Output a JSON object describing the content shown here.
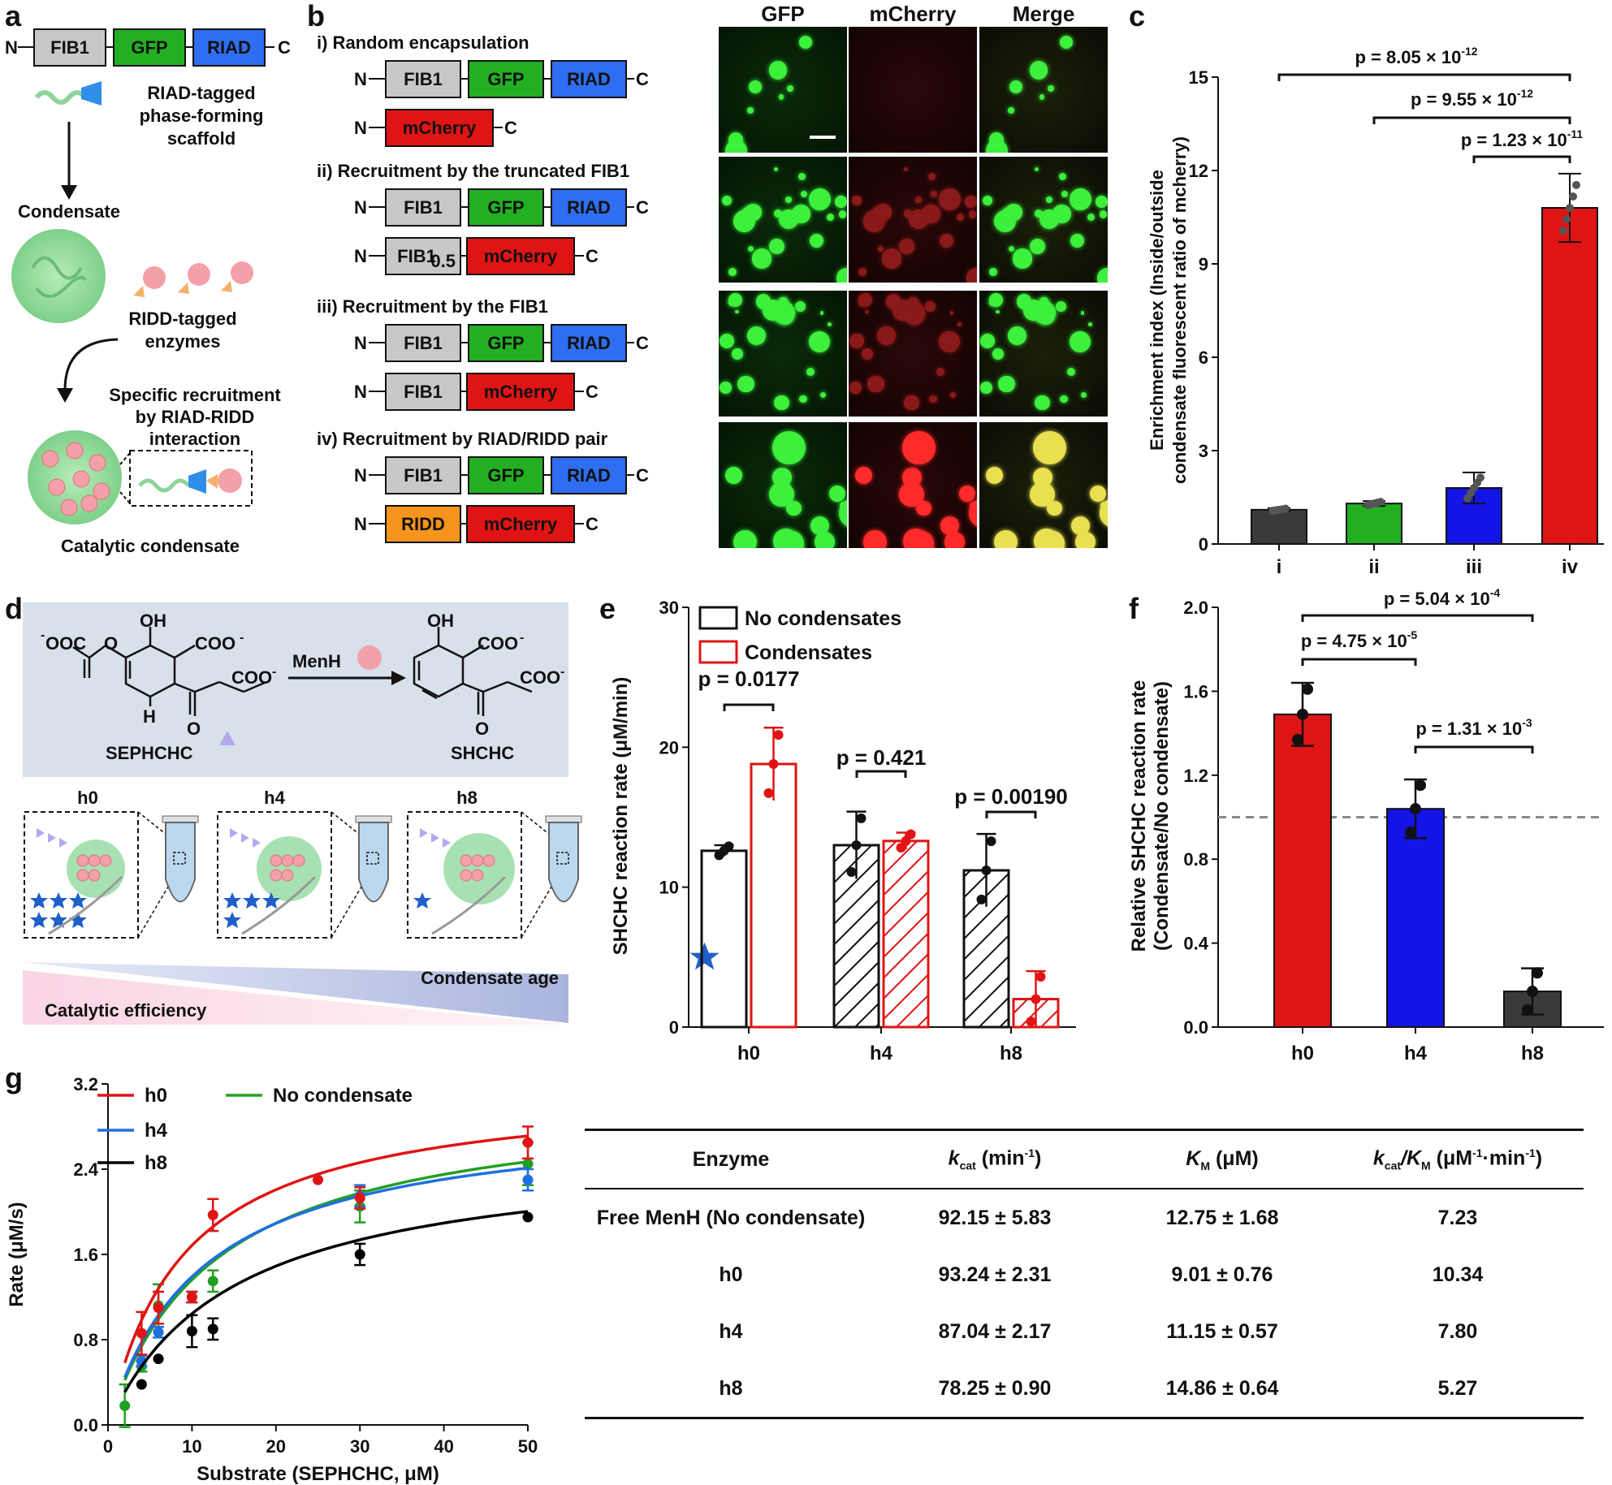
{
  "panels": {
    "a": "a",
    "b": "b",
    "c": "c",
    "d": "d",
    "e": "e",
    "f": "f",
    "g": "g"
  },
  "panel_a": {
    "n_term": "N",
    "c_term": "C",
    "domains": [
      "FIB1",
      "GFP",
      "RIAD"
    ],
    "scaffold_label_1": "RIAD-tagged",
    "scaffold_label_2": "phase-forming",
    "scaffold_label_3": "scaffold",
    "condensate": "Condensate",
    "enzyme_label_1": "RIDD-tagged",
    "enzyme_label_2": "enzymes",
    "recruit_1": "Specific recruitment",
    "recruit_2": "by RIAD-RIDD",
    "recruit_3": "interaction",
    "catalytic": "Catalytic condensate",
    "colors": {
      "fib1": "#c8c8c8",
      "gfp": "#22b022",
      "riad": "#2f6ef0",
      "mcherry": "#e01414",
      "ridd": "#f7941d"
    }
  },
  "panel_b": {
    "col_headers": [
      "GFP",
      "mCherry",
      "Merge"
    ],
    "rows": [
      {
        "title": "i) Random encapsulation",
        "c1": [
          "FIB1",
          "GFP",
          "RIAD"
        ],
        "c2": [
          "mCherry"
        ]
      },
      {
        "title": "ii) Recruitment by the truncated FIB1",
        "c1": [
          "FIB1",
          "GFP",
          "RIAD"
        ],
        "c2": [
          "FIB1",
          "mCherry"
        ],
        "sub": "0.5"
      },
      {
        "title": "iii) Recruitment by the FIB1",
        "c1": [
          "FIB1",
          "GFP",
          "RIAD"
        ],
        "c2": [
          "FIB1",
          "mCherry"
        ]
      },
      {
        "title": "iv) Recruitment by RIAD/RIDD pair",
        "c1": [
          "FIB1",
          "GFP",
          "RIAD"
        ],
        "c2": [
          "RIDD",
          "mCherry"
        ]
      }
    ],
    "n": "N",
    "c": "C"
  },
  "chart_data": [
    {
      "panel": "c",
      "type": "bar",
      "categories": [
        "i",
        "ii",
        "iii",
        "iv"
      ],
      "values": [
        1.1,
        1.3,
        1.8,
        10.8
      ],
      "errors": [
        0.05,
        0.08,
        0.5,
        1.1
      ],
      "colors": [
        "#3a3a3a",
        "#22b022",
        "#1414e6",
        "#e01414"
      ],
      "ylabel": "Enrichment index (Inside/outside condensate fluorescent ratio of mcherry)",
      "ylabel_1": "Enrichment index (Inside/outside",
      "ylabel_2": "condensate fluorescent ratio of mcherry)",
      "ylim": [
        0,
        15
      ],
      "yticks": [
        "0",
        "3",
        "6",
        "9",
        "12",
        "15"
      ],
      "pvalues": [
        {
          "base": "p = 8.05 × 10",
          "exp": "-12",
          "from": "i",
          "to": "iv"
        },
        {
          "base": "p = 9.55 × 10",
          "exp": "-12",
          "from": "ii",
          "to": "iv"
        },
        {
          "base": "p = 1.23 × 10",
          "exp": "-11",
          "from": "iii",
          "to": "iv"
        }
      ]
    },
    {
      "panel": "e",
      "type": "bar",
      "categories": [
        "h0",
        "h4",
        "h8"
      ],
      "series": [
        {
          "name": "No condensates",
          "values": [
            12.6,
            13.0,
            11.2
          ],
          "errors": [
            0.4,
            2.4,
            2.6
          ]
        },
        {
          "name": "Condensates",
          "values": [
            18.8,
            13.3,
            2.0
          ],
          "errors": [
            2.6,
            0.6,
            2.0
          ]
        }
      ],
      "ylabel": "SHCHC reaction rate (μM/min)",
      "ylim": [
        0,
        30
      ],
      "yticks": [
        "0",
        "10",
        "20",
        "30"
      ],
      "pvalues": [
        "p = 0.0177",
        "p = 0.421",
        "p = 0.00190"
      ]
    },
    {
      "panel": "f",
      "type": "bar",
      "categories": [
        "h0",
        "h4",
        "h8"
      ],
      "values": [
        1.49,
        1.04,
        0.17
      ],
      "errors": [
        0.15,
        0.14,
        0.11
      ],
      "colors": [
        "#e01414",
        "#1414e6",
        "#3a3a3a"
      ],
      "ylabel_1": "Relative SHCHC reaction rate",
      "ylabel_2": "(Condensate/No condensate)",
      "ylim": [
        0,
        2.0
      ],
      "yticks": [
        "0.0",
        "0.4",
        "0.8",
        "1.2",
        "1.6",
        "2.0"
      ],
      "reference_line": 1.0,
      "pvalues": [
        {
          "base": "p = 5.04 × 10",
          "exp": "-4"
        },
        {
          "base": "p = 4.75 × 10",
          "exp": "-5"
        },
        {
          "base": "p = 1.31 × 10",
          "exp": "-3"
        }
      ]
    },
    {
      "panel": "g",
      "type": "line",
      "xlabel": "Substrate (SEPHCHC, μM)",
      "ylabel": "Rate (μM/s)",
      "xlim": [
        0,
        50
      ],
      "ylim": [
        0,
        3.2
      ],
      "xticks": [
        "0",
        "10",
        "20",
        "30",
        "40",
        "50"
      ],
      "yticks": [
        "0.0",
        "0.8",
        "1.6",
        "2.4",
        "3.2"
      ],
      "series": [
        {
          "name": "h0",
          "color": "#e01414",
          "vmax": 3.2,
          "km": 9.0,
          "x": [
            4,
            6,
            10,
            12.5,
            25,
            30,
            50
          ],
          "y": [
            0.86,
            1.1,
            1.2,
            1.97,
            2.3,
            2.13,
            2.65
          ],
          "err": [
            0.2,
            0.15,
            0.05,
            0.15,
            0,
            0.1,
            0.15
          ]
        },
        {
          "name": "h4",
          "color": "#1f6fe0",
          "vmax": 2.95,
          "km": 11.2,
          "x": [
            4,
            6,
            10,
            30,
            50
          ],
          "y": [
            0.6,
            0.87,
            1.2,
            2.15,
            2.3
          ],
          "err": [
            0.05,
            0.05,
            0.05,
            0.1,
            0.1
          ]
        },
        {
          "name": "h8",
          "color": "#000000",
          "vmax": 2.6,
          "km": 14.9,
          "x": [
            4,
            6,
            10,
            12.5,
            30,
            50
          ],
          "y": [
            0.38,
            0.62,
            0.88,
            0.9,
            1.6,
            1.95
          ],
          "err": [
            0,
            0,
            0.15,
            0.1,
            0.1,
            0
          ]
        },
        {
          "name": "No condensate",
          "color": "#22a022",
          "vmax": 3.1,
          "km": 12.75,
          "x": [
            2,
            4,
            6,
            10,
            12.5,
            30,
            50
          ],
          "y": [
            0.18,
            0.55,
            1.12,
            1.2,
            1.35,
            2.05,
            2.45
          ],
          "err": [
            0.2,
            0.05,
            0.2,
            0.05,
            0.1,
            0.15,
            0.2
          ]
        }
      ]
    }
  ],
  "panel_d": {
    "menh": "MenH",
    "sephchc": "SEPHCHC",
    "shchc": "SHCHC",
    "oh": "OH",
    "coo": "COO",
    "ooc": "OOC",
    "h": "H",
    "o": "O",
    "minus": "-",
    "ages": [
      "h0",
      "h4",
      "h8"
    ],
    "condensate_age": "Condensate age",
    "catalytic_efficiency": "Catalytic efficiency"
  },
  "table": {
    "headers": [
      "Enzyme",
      "k",
      "K",
      "k"
    ],
    "header_units": [
      "",
      "cat (min-1)",
      "M (μM)",
      "cat/KM (μM-1·min-1)"
    ],
    "h1_main": "k",
    "h1_sub": "cat",
    "h1_unit": " (min",
    "h1_sup": "-1",
    "h1_close": ")",
    "h2_main": "K",
    "h2_sub": "M",
    "h2_unit": " (μM)",
    "h3_main": "k",
    "h3_sub": "cat",
    "h3_slash": "/K",
    "h3_sub2": "M",
    "h3_unit": " (μM",
    "h3_sup": "-1",
    "h3_mid": "·min",
    "h3_sup2": "-1",
    "h3_close": ")",
    "rows": [
      {
        "enzyme": "Free MenH (No condensate)",
        "kcat": "92.15 ± 5.83",
        "km": "12.75 ± 1.68",
        "ratio": "7.23"
      },
      {
        "enzyme": "h0",
        "kcat": "93.24 ± 2.31",
        "km": "9.01 ± 0.76",
        "ratio": "10.34"
      },
      {
        "enzyme": "h4",
        "kcat": "87.04 ± 2.17",
        "km": "11.15 ± 0.57",
        "ratio": "7.80"
      },
      {
        "enzyme": "h8",
        "kcat": "78.25 ± 0.90",
        "km": "14.86 ± 0.64",
        "ratio": "5.27"
      }
    ]
  }
}
